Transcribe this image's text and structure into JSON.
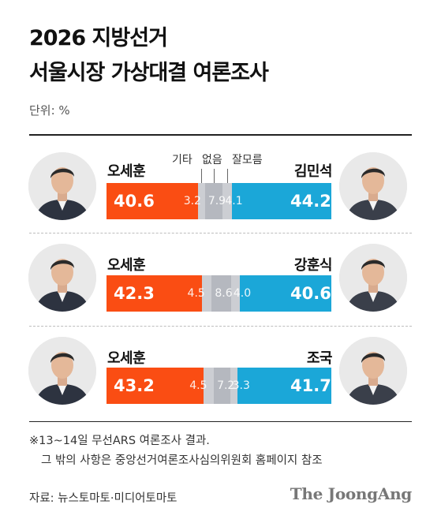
{
  "header": {
    "title_line1": "2026 지방선거",
    "title_line2": "서울시장 가상대결 여론조사",
    "unit": "단위: %"
  },
  "colors": {
    "left": "#fa4d13",
    "right": "#1ba7d8",
    "etc": "#ccced3",
    "none": "#b5b8bf",
    "unsure": "#ccced3"
  },
  "chart_data": {
    "type": "bar",
    "stacked": true,
    "orientation": "horizontal",
    "categories": [
      "오세훈 vs 김민석",
      "오세훈 vs 강훈식",
      "오세훈 vs 조국"
    ],
    "segment_labels": [
      "기타",
      "없음",
      "잘모름"
    ],
    "rows": [
      {
        "left_name": "오세훈",
        "right_name": "김민석",
        "left": 40.6,
        "etc": 3.2,
        "none": 7.9,
        "unsure": 4.1,
        "right": 44.2
      },
      {
        "left_name": "오세훈",
        "right_name": "강훈식",
        "left": 42.3,
        "etc": 4.5,
        "none": 8.6,
        "unsure": 4.0,
        "right": 40.6
      },
      {
        "left_name": "오세훈",
        "right_name": "조국",
        "left": 43.2,
        "etc": 4.5,
        "none": 7.2,
        "unsure": 3.3,
        "right": 41.7
      }
    ]
  },
  "footer": {
    "note_line1": "※13~14일 무선ARS 여론조사 결과.",
    "note_line2": "그 밖의 사항은 중앙선거여론조사심의위원회 홈페이지 참조",
    "source": "자료: 뉴스토마토·미디어토마토",
    "brand": "The JoongAng"
  }
}
